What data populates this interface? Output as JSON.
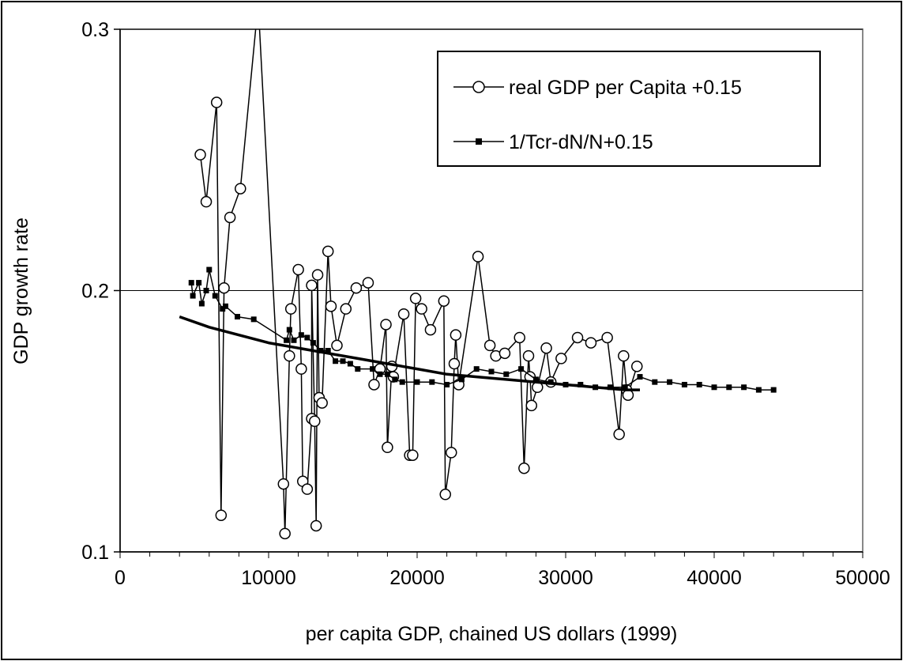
{
  "chart_data": {
    "type": "scatter",
    "title": "",
    "xlabel": "per capita GDP, chained US dollars (1999)",
    "ylabel": "GDP growth rate",
    "xlim": [
      0,
      50000
    ],
    "ylim": [
      0.1,
      0.3
    ],
    "x_ticks": [
      0,
      10000,
      20000,
      30000,
      40000,
      50000
    ],
    "y_ticks": [
      0.1,
      0.2,
      0.3
    ],
    "x_tick_labels": [
      "0",
      "10000",
      "20000",
      "30000",
      "40000",
      "50000"
    ],
    "y_tick_labels": [
      "0.1",
      "0.2",
      "0.3"
    ],
    "grid": "horizontal",
    "legend_position": "top-right",
    "colors": {
      "line": "#000000",
      "background": "#ffffff",
      "frame": "#000000"
    },
    "series": [
      {
        "name": "real GDP per Capita +0.15",
        "marker": "open-circle",
        "points": [
          [
            5400,
            0.252
          ],
          [
            5800,
            0.234
          ],
          [
            6500,
            0.272
          ],
          [
            6800,
            0.114
          ],
          [
            7000,
            0.201
          ],
          [
            7400,
            0.228
          ],
          [
            8100,
            0.239
          ],
          [
            9300,
            0.31
          ],
          [
            11000,
            0.126
          ],
          [
            11100,
            0.107
          ],
          [
            11400,
            0.175
          ],
          [
            11500,
            0.193
          ],
          [
            12000,
            0.208
          ],
          [
            12200,
            0.17
          ],
          [
            12300,
            0.127
          ],
          [
            12600,
            0.124
          ],
          [
            12900,
            0.151
          ],
          [
            12900,
            0.202
          ],
          [
            13100,
            0.15
          ],
          [
            13200,
            0.11
          ],
          [
            13300,
            0.206
          ],
          [
            13400,
            0.159
          ],
          [
            13600,
            0.157
          ],
          [
            14000,
            0.215
          ],
          [
            14200,
            0.194
          ],
          [
            14600,
            0.179
          ],
          [
            15200,
            0.193
          ],
          [
            15900,
            0.201
          ],
          [
            16700,
            0.203
          ],
          [
            17100,
            0.164
          ],
          [
            17500,
            0.17
          ],
          [
            17900,
            0.187
          ],
          [
            18000,
            0.14
          ],
          [
            18300,
            0.171
          ],
          [
            18400,
            0.167
          ],
          [
            19100,
            0.191
          ],
          [
            19500,
            0.137
          ],
          [
            19700,
            0.137
          ],
          [
            19900,
            0.197
          ],
          [
            20300,
            0.193
          ],
          [
            20900,
            0.185
          ],
          [
            21800,
            0.196
          ],
          [
            21900,
            0.122
          ],
          [
            22300,
            0.138
          ],
          [
            22500,
            0.172
          ],
          [
            22600,
            0.183
          ],
          [
            22800,
            0.164
          ],
          [
            24100,
            0.213
          ],
          [
            24900,
            0.179
          ],
          [
            25300,
            0.175
          ],
          [
            25900,
            0.176
          ],
          [
            26900,
            0.182
          ],
          [
            27200,
            0.132
          ],
          [
            27500,
            0.175
          ],
          [
            27600,
            0.167
          ],
          [
            27700,
            0.156
          ],
          [
            28100,
            0.163
          ],
          [
            28700,
            0.178
          ],
          [
            29000,
            0.165
          ],
          [
            29700,
            0.174
          ],
          [
            30800,
            0.182
          ],
          [
            31700,
            0.18
          ],
          [
            32800,
            0.182
          ],
          [
            33600,
            0.145
          ],
          [
            33900,
            0.175
          ],
          [
            34100,
            0.162
          ],
          [
            34200,
            0.16
          ],
          [
            34800,
            0.171
          ]
        ]
      },
      {
        "name": "1/Tcr-dN/N+0.15",
        "marker": "filled-square",
        "points": [
          [
            4800,
            0.203
          ],
          [
            4900,
            0.198
          ],
          [
            5300,
            0.203
          ],
          [
            5500,
            0.195
          ],
          [
            5800,
            0.2
          ],
          [
            6000,
            0.208
          ],
          [
            6400,
            0.198
          ],
          [
            6900,
            0.193
          ],
          [
            7100,
            0.194
          ],
          [
            7900,
            0.19
          ],
          [
            9000,
            0.189
          ],
          [
            11200,
            0.181
          ],
          [
            11400,
            0.185
          ],
          [
            11700,
            0.181
          ],
          [
            12200,
            0.183
          ],
          [
            12600,
            0.182
          ],
          [
            13000,
            0.18
          ],
          [
            13500,
            0.177
          ],
          [
            14000,
            0.177
          ],
          [
            14500,
            0.173
          ],
          [
            15000,
            0.173
          ],
          [
            15500,
            0.172
          ],
          [
            16000,
            0.17
          ],
          [
            17000,
            0.17
          ],
          [
            17500,
            0.168
          ],
          [
            18000,
            0.168
          ],
          [
            18500,
            0.166
          ],
          [
            19000,
            0.165
          ],
          [
            20000,
            0.165
          ],
          [
            21000,
            0.165
          ],
          [
            22000,
            0.164
          ],
          [
            23000,
            0.166
          ],
          [
            24000,
            0.17
          ],
          [
            25000,
            0.169
          ],
          [
            26000,
            0.168
          ],
          [
            27000,
            0.17
          ],
          [
            28000,
            0.166
          ],
          [
            29000,
            0.165
          ],
          [
            30000,
            0.164
          ],
          [
            31000,
            0.164
          ],
          [
            32000,
            0.163
          ],
          [
            33000,
            0.163
          ],
          [
            34000,
            0.163
          ],
          [
            35000,
            0.167
          ],
          [
            36000,
            0.165
          ],
          [
            37000,
            0.165
          ],
          [
            38000,
            0.164
          ],
          [
            39000,
            0.164
          ],
          [
            40000,
            0.163
          ],
          [
            41000,
            0.163
          ],
          [
            42000,
            0.163
          ],
          [
            43000,
            0.162
          ],
          [
            44000,
            0.162
          ]
        ]
      },
      {
        "name": "",
        "marker": "none",
        "style": "thick-line",
        "points": [
          [
            4000,
            0.19
          ],
          [
            6000,
            0.186
          ],
          [
            8000,
            0.183
          ],
          [
            10000,
            0.18
          ],
          [
            12000,
            0.178
          ],
          [
            14000,
            0.176
          ],
          [
            16000,
            0.174
          ],
          [
            18000,
            0.172
          ],
          [
            20000,
            0.17
          ],
          [
            22000,
            0.168
          ],
          [
            24000,
            0.167
          ],
          [
            26000,
            0.166
          ],
          [
            28000,
            0.165
          ],
          [
            30000,
            0.164
          ],
          [
            32000,
            0.163
          ],
          [
            34000,
            0.162
          ],
          [
            35000,
            0.162
          ]
        ]
      }
    ]
  }
}
